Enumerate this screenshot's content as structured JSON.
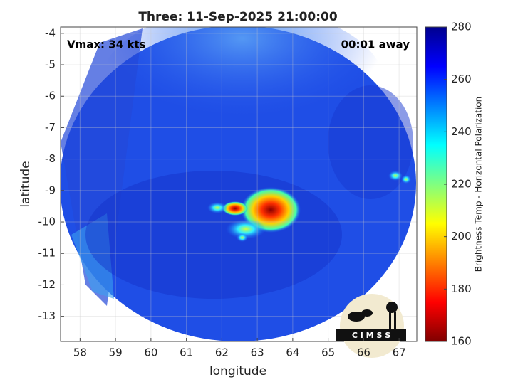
{
  "chart_data": {
    "type": "image",
    "title": "Three: 11-Sep-2025 21:00:00",
    "xlabel": "longitude",
    "ylabel": "latitude",
    "annotations": [
      "Vmax: 34 kts",
      "00:01 away"
    ],
    "xlim": [
      57.45,
      67.5
    ],
    "xticks": [
      58,
      59,
      60,
      61,
      62,
      63,
      64,
      65,
      66,
      67
    ],
    "ylim": [
      -13.8,
      -3.8
    ],
    "yticks": [
      -13,
      -12,
      -11,
      -10,
      -9,
      -8,
      -7,
      -6,
      -5,
      -4
    ],
    "grid": true,
    "colorbar": {
      "label": "Brightness Temp - Horizontal Polarization",
      "lim": [
        160,
        280
      ],
      "ticks": [
        160,
        180,
        200,
        220,
        240,
        260,
        280
      ],
      "colormap": [
        "#800000",
        "#ff0000",
        "#ff8000",
        "#ffff00",
        "#80ff80",
        "#00ffff",
        "#0080ff",
        "#0000ff",
        "#00008f"
      ]
    },
    "logo": "C I M S S"
  }
}
